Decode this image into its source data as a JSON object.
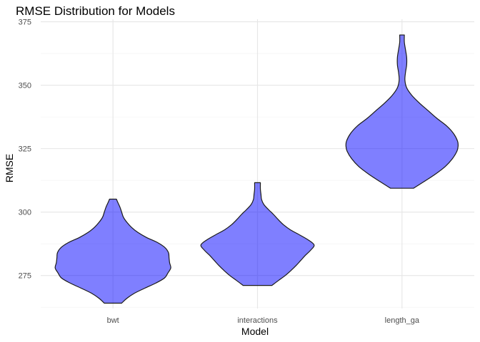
{
  "chart_data": {
    "type": "violin",
    "title": "RMSE Distribution for Models",
    "xlabel": "Model",
    "ylabel": "RMSE",
    "categories": [
      "bwt",
      "interactions",
      "length_ga"
    ],
    "yticks": [
      275,
      300,
      325,
      350,
      375
    ],
    "ylim": [
      262,
      376
    ],
    "grid": true,
    "legend": "none",
    "fill_color": "#0000ff",
    "fill_opacity": 0.5,
    "outline_color": "#1a1a1a",
    "series": [
      {
        "category": "bwt",
        "min": 264.1,
        "max": 305.1,
        "profile": [
          [
            264.1,
            0.15
          ],
          [
            266,
            0.24
          ],
          [
            268,
            0.37
          ],
          [
            270,
            0.55
          ],
          [
            272,
            0.74
          ],
          [
            274,
            0.89
          ],
          [
            276,
            0.95
          ],
          [
            278,
            1.0
          ],
          [
            280,
            0.98
          ],
          [
            282,
            0.97
          ],
          [
            284,
            0.96
          ],
          [
            286,
            0.9
          ],
          [
            288,
            0.77
          ],
          [
            290,
            0.58
          ],
          [
            292,
            0.43
          ],
          [
            294,
            0.32
          ],
          [
            296,
            0.24
          ],
          [
            298,
            0.18
          ],
          [
            300,
            0.15
          ],
          [
            302,
            0.12
          ],
          [
            304,
            0.08
          ],
          [
            305.1,
            0.06
          ]
        ]
      },
      {
        "category": "interactions",
        "min": 271.1,
        "max": 311.6,
        "profile": [
          [
            271.1,
            0.25
          ],
          [
            273,
            0.36
          ],
          [
            275,
            0.48
          ],
          [
            277,
            0.58
          ],
          [
            279,
            0.67
          ],
          [
            281,
            0.75
          ],
          [
            283,
            0.83
          ],
          [
            285,
            0.92
          ],
          [
            287,
            0.98
          ],
          [
            289,
            0.88
          ],
          [
            291,
            0.73
          ],
          [
            293,
            0.57
          ],
          [
            295,
            0.45
          ],
          [
            297,
            0.36
          ],
          [
            299,
            0.28
          ],
          [
            301,
            0.19
          ],
          [
            303,
            0.11
          ],
          [
            305,
            0.07
          ],
          [
            307,
            0.06
          ],
          [
            309,
            0.05
          ],
          [
            311.6,
            0.05
          ]
        ]
      },
      {
        "category": "length_ga",
        "min": 309.4,
        "max": 369.8,
        "profile": [
          [
            309.4,
            0.2
          ],
          [
            312,
            0.38
          ],
          [
            315,
            0.58
          ],
          [
            318,
            0.75
          ],
          [
            321,
            0.87
          ],
          [
            324,
            0.95
          ],
          [
            326,
            0.97
          ],
          [
            328,
            0.96
          ],
          [
            331,
            0.89
          ],
          [
            334,
            0.77
          ],
          [
            337,
            0.6
          ],
          [
            340,
            0.45
          ],
          [
            343,
            0.3
          ],
          [
            346,
            0.17
          ],
          [
            349,
            0.08
          ],
          [
            352,
            0.05
          ],
          [
            355,
            0.06
          ],
          [
            358,
            0.08
          ],
          [
            361,
            0.08
          ],
          [
            364,
            0.06
          ],
          [
            367,
            0.04
          ],
          [
            369.8,
            0.04
          ]
        ]
      }
    ]
  }
}
